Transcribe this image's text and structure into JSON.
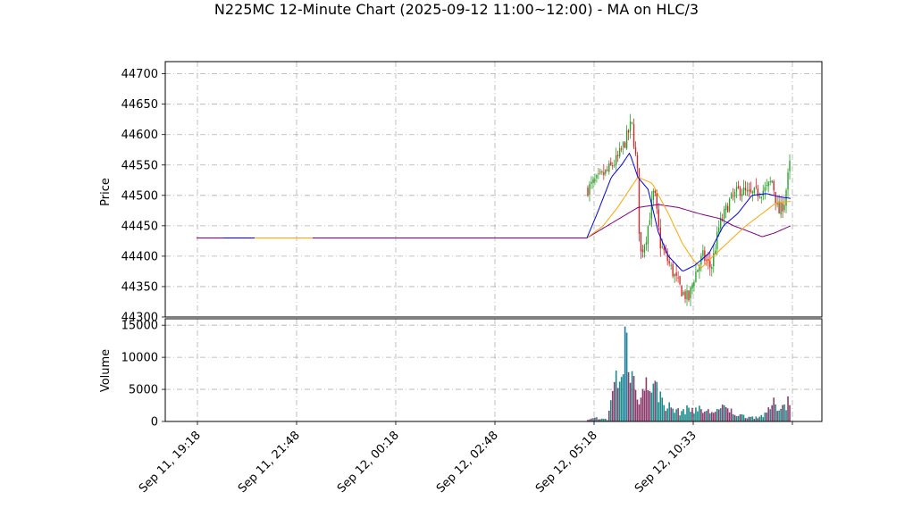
{
  "chart_data": {
    "type": "candlestick",
    "title": "N225MC 12-Minute Chart (2025-09-12 11:00~12:00) - MA on HLC/3",
    "colors": {
      "up": "#2ca02c",
      "down": "#d62728",
      "ma_fast": "#0000ee",
      "ma_mid": "#ffa500",
      "ma_slow": "#800080",
      "volume_up": "#1a8a8a",
      "volume_down": "#8b3a6b",
      "volume_spike": "#1f77b4"
    },
    "price_panel": {
      "ylabel": "Price",
      "ylim": [
        44300,
        44720
      ],
      "yticks": [
        44300,
        44350,
        44400,
        44450,
        44500,
        44550,
        44600,
        44650,
        44700
      ],
      "grid": true
    },
    "volume_panel": {
      "ylabel": "Volume",
      "ylim": [
        0,
        16000
      ],
      "yticks": [
        0,
        5000,
        10000,
        15000
      ],
      "grid": true
    },
    "x_tick_labels": [
      "Sep 11, 19:18",
      "Sep 11, 21:48",
      "Sep 12, 00:18",
      "Sep 12, 02:48",
      "Sep 12, 05:18",
      "Sep 12, 10:33"
    ],
    "flat_price": 44430,
    "active_anchors": [
      {
        "t": 0.0,
        "p": 44510
      },
      {
        "t": 0.05,
        "p": 44525
      },
      {
        "t": 0.1,
        "p": 44540
      },
      {
        "t": 0.15,
        "p": 44560
      },
      {
        "t": 0.19,
        "p": 44590
      },
      {
        "t": 0.22,
        "p": 44620
      },
      {
        "t": 0.25,
        "p": 44530
      },
      {
        "t": 0.26,
        "p": 44400
      },
      {
        "t": 0.29,
        "p": 44430
      },
      {
        "t": 0.33,
        "p": 44510
      },
      {
        "t": 0.36,
        "p": 44420
      },
      {
        "t": 0.4,
        "p": 44390
      },
      {
        "t": 0.44,
        "p": 44360
      },
      {
        "t": 0.47,
        "p": 44340
      },
      {
        "t": 0.5,
        "p": 44330
      },
      {
        "t": 0.53,
        "p": 44370
      },
      {
        "t": 0.57,
        "p": 44400
      },
      {
        "t": 0.61,
        "p": 44380
      },
      {
        "t": 0.65,
        "p": 44450
      },
      {
        "t": 0.7,
        "p": 44490
      },
      {
        "t": 0.75,
        "p": 44510
      },
      {
        "t": 0.8,
        "p": 44500
      },
      {
        "t": 0.84,
        "p": 44505
      },
      {
        "t": 0.88,
        "p": 44510
      },
      {
        "t": 0.91,
        "p": 44525
      },
      {
        "t": 0.94,
        "p": 44470
      },
      {
        "t": 0.97,
        "p": 44490
      },
      {
        "t": 1.0,
        "p": 44560
      }
    ],
    "ma_fast": [
      {
        "t": 0.0,
        "p": 44430
      },
      {
        "t": 0.05,
        "p": 44470
      },
      {
        "t": 0.12,
        "p": 44530
      },
      {
        "t": 0.17,
        "p": 44550
      },
      {
        "t": 0.21,
        "p": 44570
      },
      {
        "t": 0.25,
        "p": 44530
      },
      {
        "t": 0.3,
        "p": 44510
      },
      {
        "t": 0.35,
        "p": 44440
      },
      {
        "t": 0.4,
        "p": 44400
      },
      {
        "t": 0.47,
        "p": 44375
      },
      {
        "t": 0.53,
        "p": 44385
      },
      {
        "t": 0.6,
        "p": 44405
      },
      {
        "t": 0.67,
        "p": 44450
      },
      {
        "t": 0.74,
        "p": 44470
      },
      {
        "t": 0.81,
        "p": 44500
      },
      {
        "t": 0.88,
        "p": 44503
      },
      {
        "t": 0.94,
        "p": 44498
      },
      {
        "t": 1.0,
        "p": 44495
      }
    ],
    "ma_mid": [
      {
        "t": 0.0,
        "p": 44430
      },
      {
        "t": 0.08,
        "p": 44450
      },
      {
        "t": 0.15,
        "p": 44480
      },
      {
        "t": 0.21,
        "p": 44510
      },
      {
        "t": 0.25,
        "p": 44530
      },
      {
        "t": 0.32,
        "p": 44520
      },
      {
        "t": 0.4,
        "p": 44470
      },
      {
        "t": 0.47,
        "p": 44420
      },
      {
        "t": 0.52,
        "p": 44395
      },
      {
        "t": 0.56,
        "p": 44380
      },
      {
        "t": 0.62,
        "p": 44400
      },
      {
        "t": 0.7,
        "p": 44425
      },
      {
        "t": 0.78,
        "p": 44450
      },
      {
        "t": 0.86,
        "p": 44470
      },
      {
        "t": 0.93,
        "p": 44488
      },
      {
        "t": 1.0,
        "p": 44490
      }
    ],
    "ma_slow": [
      {
        "t": 0.0,
        "p": 44430
      },
      {
        "t": 0.1,
        "p": 44450
      },
      {
        "t": 0.2,
        "p": 44470
      },
      {
        "t": 0.25,
        "p": 44480
      },
      {
        "t": 0.35,
        "p": 44485
      },
      {
        "t": 0.45,
        "p": 44480
      },
      {
        "t": 0.55,
        "p": 44470
      },
      {
        "t": 0.65,
        "p": 44462
      },
      {
        "t": 0.72,
        "p": 44450
      },
      {
        "t": 0.8,
        "p": 44440
      },
      {
        "t": 0.86,
        "p": 44432
      },
      {
        "t": 0.92,
        "p": 44438
      },
      {
        "t": 1.0,
        "p": 44450
      }
    ],
    "volume_profile": [
      {
        "t": 0.0,
        "v": 200
      },
      {
        "t": 0.05,
        "v": 600
      },
      {
        "t": 0.1,
        "v": 300
      },
      {
        "t": 0.14,
        "v": 7600
      },
      {
        "t": 0.17,
        "v": 5500
      },
      {
        "t": 0.19,
        "v": 14800
      },
      {
        "t": 0.22,
        "v": 7800
      },
      {
        "t": 0.26,
        "v": 4200
      },
      {
        "t": 0.31,
        "v": 6800
      },
      {
        "t": 0.35,
        "v": 4800
      },
      {
        "t": 0.39,
        "v": 2700
      },
      {
        "t": 0.45,
        "v": 1600
      },
      {
        "t": 0.52,
        "v": 2200
      },
      {
        "t": 0.6,
        "v": 1600
      },
      {
        "t": 0.68,
        "v": 2200
      },
      {
        "t": 0.75,
        "v": 1000
      },
      {
        "t": 0.82,
        "v": 700
      },
      {
        "t": 0.88,
        "v": 1100
      },
      {
        "t": 0.91,
        "v": 3000
      },
      {
        "t": 0.95,
        "v": 2400
      },
      {
        "t": 1.0,
        "v": 3700
      }
    ]
  }
}
